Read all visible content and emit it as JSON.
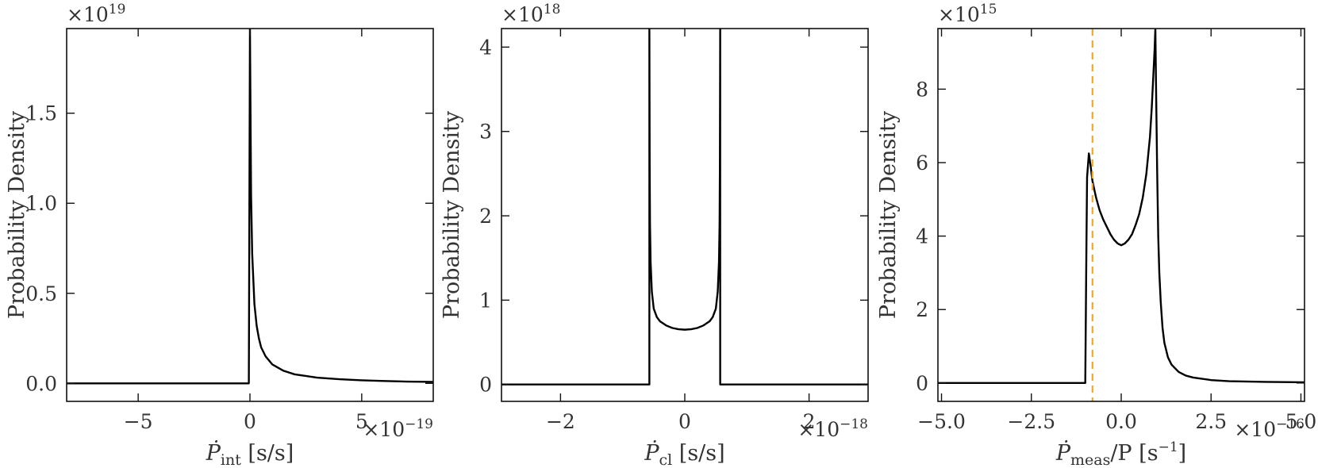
{
  "chart_data": [
    {
      "type": "line",
      "xlabel_parts": [
        "Ṗ",
        "int",
        " [s/s]"
      ],
      "ylabel": "Probability Density",
      "x_multiplier": {
        "base": "×10",
        "exp": "−19"
      },
      "y_multiplier": {
        "base": "×10",
        "exp": "19"
      },
      "xlim": [
        -8.2,
        8.2
      ],
      "ylim": [
        -0.1,
        1.97
      ],
      "xticks": [
        -5,
        0,
        5
      ],
      "xticklabels": [
        "−5",
        "0",
        "5"
      ],
      "yticks": [
        0.0,
        0.5,
        1.0,
        1.5
      ],
      "yticklabels": [
        "0.0",
        "0.5",
        "1.0",
        "1.5"
      ],
      "series": [
        {
          "x": [
            -8.2,
            -0.05,
            0,
            0.05,
            0.1,
            0.2,
            0.3,
            0.4,
            0.5,
            0.7,
            1.0,
            1.5,
            2.0,
            3.0,
            4.0,
            5.0,
            6.0,
            7.0,
            8.2
          ],
          "y": [
            0.0,
            0.0,
            1.97,
            1.05,
            0.72,
            0.44,
            0.32,
            0.25,
            0.2,
            0.15,
            0.105,
            0.07,
            0.05,
            0.032,
            0.023,
            0.017,
            0.013,
            0.01,
            0.008
          ]
        }
      ],
      "grid": false
    },
    {
      "type": "line",
      "xlabel_parts": [
        "Ṗ",
        "cl",
        " [s/s]"
      ],
      "ylabel": "Probability Density",
      "x_multiplier": {
        "base": "×10",
        "exp": "−18"
      },
      "y_multiplier": {
        "base": "×10",
        "exp": "18"
      },
      "xlim": [
        -2.95,
        2.95
      ],
      "ylim": [
        -0.2,
        4.22
      ],
      "xticks": [
        -2,
        0,
        2
      ],
      "xticklabels": [
        "−2",
        "0",
        "2"
      ],
      "yticks": [
        0,
        1,
        2,
        3,
        4
      ],
      "yticklabels": [
        "0",
        "1",
        "2",
        "3",
        "4"
      ],
      "series": [
        {
          "x": [
            -2.95,
            -0.57,
            -0.57,
            -0.565,
            -0.56,
            -0.55,
            -0.53,
            -0.5,
            -0.45,
            -0.4,
            -0.3,
            -0.2,
            -0.1,
            0,
            0.1,
            0.2,
            0.3,
            0.4,
            0.45,
            0.5,
            0.53,
            0.55,
            0.56,
            0.565,
            0.57,
            0.57,
            2.95
          ],
          "y": [
            0,
            0,
            4.22,
            2.6,
            1.9,
            1.45,
            1.1,
            0.9,
            0.8,
            0.75,
            0.7,
            0.67,
            0.655,
            0.65,
            0.655,
            0.67,
            0.7,
            0.75,
            0.8,
            0.9,
            1.1,
            1.45,
            1.9,
            2.6,
            4.22,
            0,
            0
          ]
        }
      ],
      "grid": false
    },
    {
      "type": "line",
      "xlabel_parts": [
        "Ṗ",
        "meas",
        "/P [s",
        "−1",
        "]"
      ],
      "ylabel": "Probability Density",
      "x_multiplier": {
        "base": "×10",
        "exp": "−16"
      },
      "y_multiplier": {
        "base": "×10",
        "exp": "15"
      },
      "xlim": [
        -5.1,
        5.1
      ],
      "ylim": [
        -0.5,
        9.65
      ],
      "xticks": [
        -5.0,
        -2.5,
        0.0,
        2.5,
        5.0
      ],
      "xticklabels": [
        "−5.0",
        "−2.5",
        "0.0",
        "2.5",
        "5.0"
      ],
      "yticks": [
        0,
        2,
        4,
        6,
        8
      ],
      "yticklabels": [
        "0",
        "2",
        "4",
        "6",
        "8"
      ],
      "reference_line": {
        "x": -0.8,
        "style": "dashed",
        "color": "#f5a623"
      },
      "series": [
        {
          "x": [
            -5.1,
            -1.0,
            -0.97,
            -0.95,
            -0.9,
            -0.85,
            -0.8,
            -0.7,
            -0.6,
            -0.5,
            -0.4,
            -0.3,
            -0.2,
            -0.1,
            0,
            0.1,
            0.2,
            0.3,
            0.4,
            0.5,
            0.6,
            0.7,
            0.8,
            0.85,
            0.9,
            0.93,
            0.95,
            0.97,
            1.0,
            1.03,
            1.06,
            1.1,
            1.15,
            1.2,
            1.3,
            1.4,
            1.6,
            1.8,
            2.0,
            2.5,
            3.0,
            4.0,
            5.1
          ],
          "y": [
            0,
            0,
            3.5,
            5.6,
            6.25,
            5.9,
            5.5,
            5.05,
            4.7,
            4.45,
            4.25,
            4.05,
            3.9,
            3.8,
            3.75,
            3.8,
            3.9,
            4.05,
            4.3,
            4.6,
            5.05,
            5.7,
            6.7,
            7.5,
            8.5,
            9.1,
            9.65,
            8.0,
            5.8,
            4.0,
            3.0,
            2.2,
            1.5,
            1.1,
            0.7,
            0.5,
            0.3,
            0.2,
            0.15,
            0.08,
            0.05,
            0.03,
            0.02
          ]
        }
      ],
      "grid": false
    }
  ]
}
